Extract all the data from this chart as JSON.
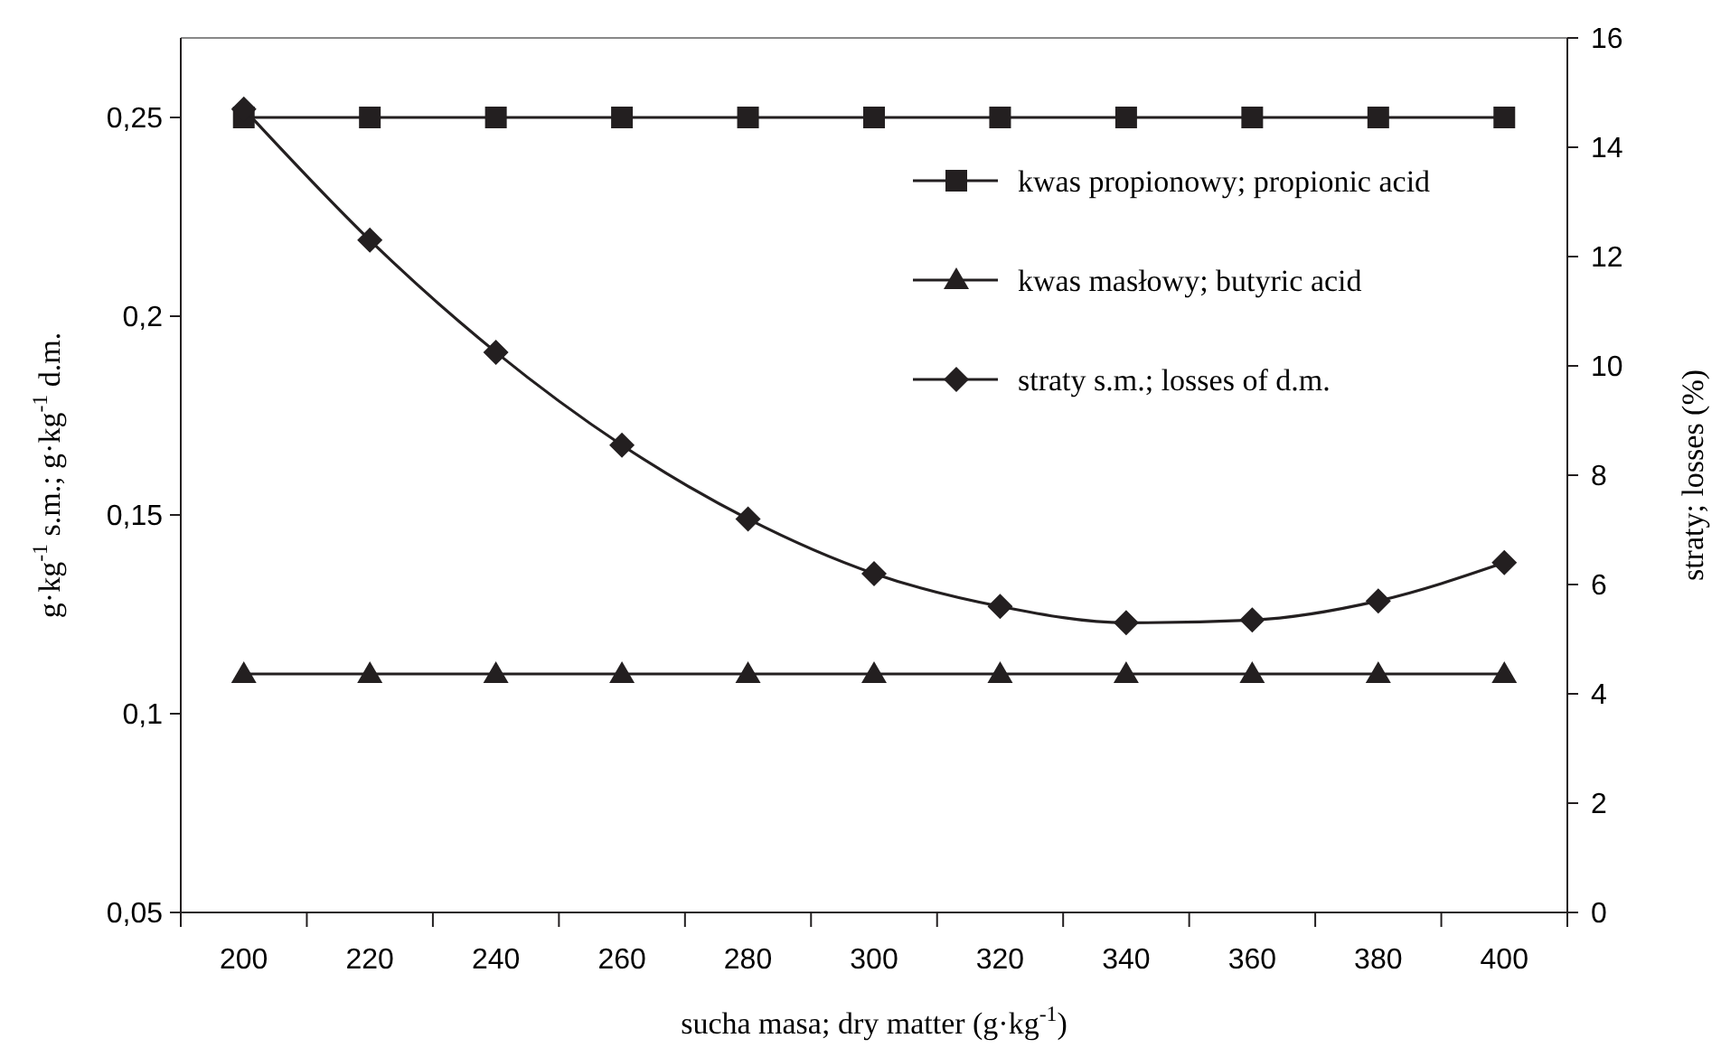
{
  "chart_data": {
    "type": "line",
    "xlabel": "sucha masa; dry matter (g·kg$^{-1}$)",
    "ylabel": "g·kg$^{-1}$ s.m.; g·kg$^{-1}$ d.m.",
    "y2label": "straty; losses (%)",
    "categories": [
      "200",
      "220",
      "240",
      "260",
      "280",
      "300",
      "320",
      "340",
      "360",
      "380",
      "400"
    ],
    "ylim": [
      0.05,
      0.27
    ],
    "yticks": [
      {
        "value": 0.05,
        "label": "0,05"
      },
      {
        "value": 0.1,
        "label": "0,1"
      },
      {
        "value": 0.15,
        "label": "0,15"
      },
      {
        "value": 0.2,
        "label": "0,2"
      },
      {
        "value": 0.25,
        "label": "0,25"
      }
    ],
    "y2lim": [
      0,
      16
    ],
    "y2ticks": [
      0,
      2,
      4,
      6,
      8,
      10,
      12,
      14,
      16
    ],
    "legend": "top right",
    "grid": false,
    "line_style": "solid",
    "series": [
      {
        "name": "kwas propionowy; propionic acid",
        "color": "#231f20",
        "marker": "square",
        "values": [
          0.25,
          0.25,
          0.25,
          0.25,
          0.25,
          0.25,
          0.25,
          0.25,
          0.25,
          0.25,
          0.25
        ]
      },
      {
        "name": "kwas masłowy; butyric acid",
        "color": "#231f20",
        "marker": "triangle",
        "values": [
          0.11,
          0.11,
          0.11,
          0.11,
          0.11,
          0.11,
          0.11,
          0.11,
          0.11,
          0.11,
          0.11
        ]
      },
      {
        "name": "straty s.m.; losses of d.m.",
        "color": "#231f20",
        "marker": "diamond",
        "axis": "y2",
        "values": [
          14.7,
          12.3,
          10.25,
          8.55,
          7.2,
          6.2,
          5.6,
          5.3,
          5.35,
          5.7,
          6.4
        ]
      }
    ]
  }
}
